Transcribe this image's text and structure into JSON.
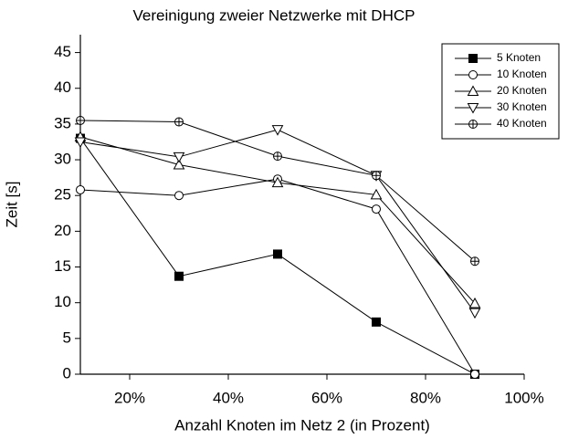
{
  "chart_data": {
    "type": "line",
    "title": "Vereinigung zweier Netzwerke mit DHCP",
    "xlabel": "Anzahl Knoten im Netz 2 (in Prozent)",
    "ylabel": "Zeit [s]",
    "x": [
      10,
      30,
      50,
      70,
      90
    ],
    "series": [
      {
        "name": "5 Knoten",
        "color": "#000000",
        "marker": "square-filled",
        "values": [
          33,
          13.7,
          16.8,
          7.3,
          0
        ]
      },
      {
        "name": "10 Knoten",
        "color": "#000000",
        "marker": "circle",
        "values": [
          25.8,
          25,
          27.3,
          23.1,
          0
        ]
      },
      {
        "name": "20 Knoten",
        "color": "#000000",
        "marker": "triangle-up",
        "values": [
          33.2,
          29.3,
          26.8,
          25.1,
          9.9
        ]
      },
      {
        "name": "30 Knoten",
        "color": "#000000",
        "marker": "triangle-down",
        "values": [
          32.5,
          30.4,
          34.2,
          27.8,
          8.6
        ]
      },
      {
        "name": "40 Knoten",
        "color": "#000000",
        "marker": "circle-cross",
        "values": [
          35.5,
          35.3,
          30.5,
          27.8,
          15.8
        ]
      }
    ],
    "xlim": [
      10,
      100
    ],
    "xticks": [
      {
        "value": 20,
        "label": "20%"
      },
      {
        "value": 40,
        "label": "40%"
      },
      {
        "value": 60,
        "label": "60%"
      },
      {
        "value": 80,
        "label": "80%"
      },
      {
        "value": 100,
        "label": "100%"
      }
    ],
    "ylim": [
      0,
      47.5
    ],
    "yticks": [
      0,
      5,
      10,
      15,
      20,
      25,
      30,
      35,
      40,
      45
    ],
    "legend": "upper right"
  }
}
